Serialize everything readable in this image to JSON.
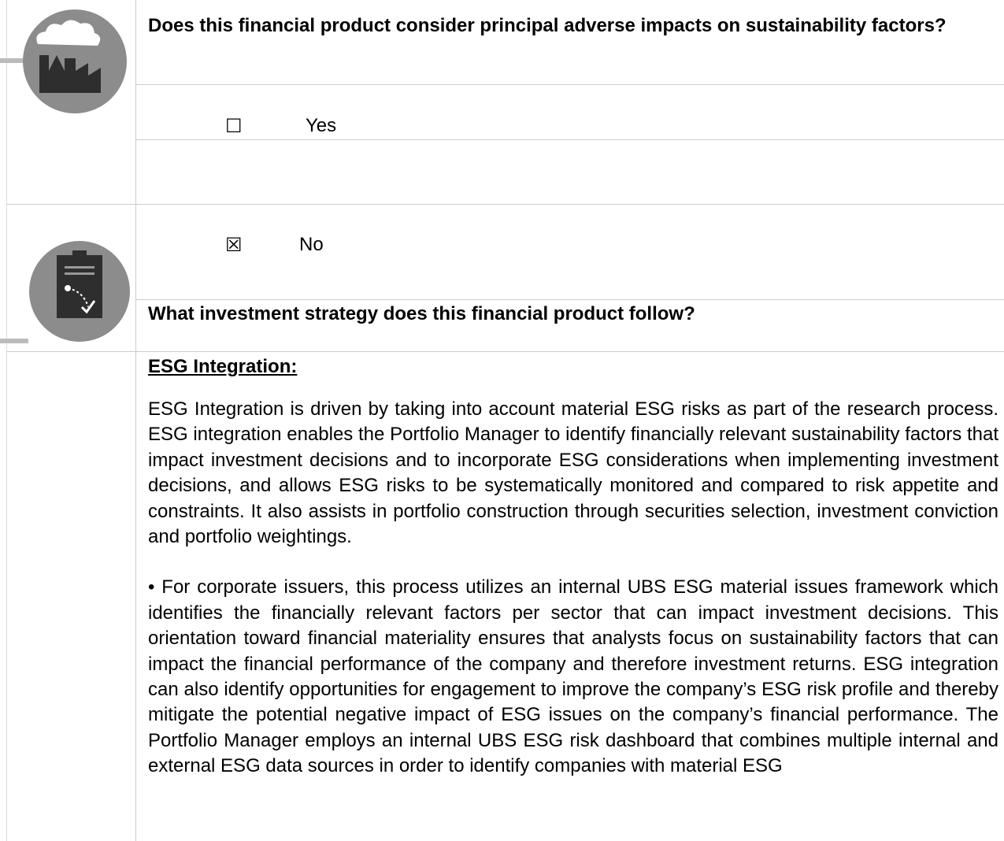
{
  "question_pai": "Does this financial product consider principal adverse impacts on sustainability factors?",
  "options": [
    {
      "symbol": "☐",
      "label": "Yes"
    },
    {
      "symbol": "☒",
      "label": "No"
    }
  ],
  "question_strategy": "What investment strategy does this financial product follow?",
  "section": {
    "heading": "ESG Integration:",
    "paragraphs": [
      "ESG Integration is driven by taking into account material ESG risks as part of the research process. ESG integration enables the Portfolio Manager to identify financially relevant sustainability factors that impact investment decisions and to incorporate ESG considerations when implementing investment decisions, and allows ESG risks to be systematically monitored and compared to risk appetite and constraints. It also assists in portfolio construction through securities selection, investment conviction and portfolio weightings.",
      "• For corporate issuers, this process utilizes an internal UBS ESG material issues framework which identifies the financially relevant factors per sector that can impact investment decisions. This orientation toward financial materiality ensures that analysts focus on sustainability factors that can impact the financial performance of the company and therefore investment returns. ESG integration can also identify opportunities for engagement to improve the company’s ESG risk profile and thereby mitigate the potential negative impact of ESG issues on the company’s financial performance. The Portfolio Manager employs an internal UBS ESG risk dashboard that combines multiple internal and external ESG data sources in order to identify companies with material ESG"
    ]
  }
}
